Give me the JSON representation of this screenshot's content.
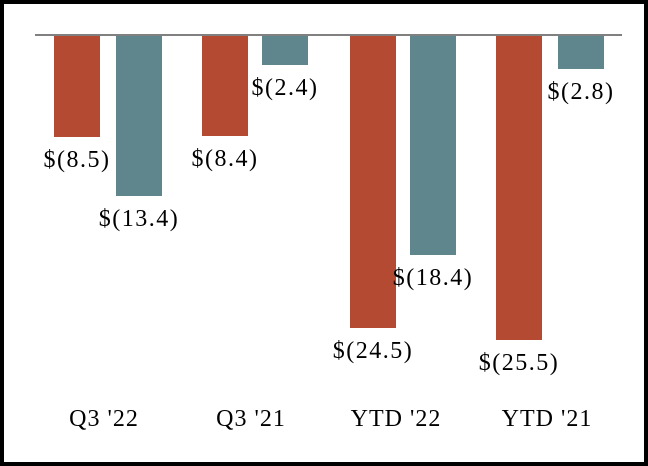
{
  "chart_data": {
    "type": "bar",
    "title": "",
    "xlabel": "",
    "ylabel": "",
    "unit": "USD (negative values shown in parentheses)",
    "categories": [
      "Q3 '22",
      "Q3 '21",
      "YTD '22",
      "YTD '21"
    ],
    "series": [
      {
        "name": "series-red",
        "color": "#b34a31",
        "values": [
          -8.5,
          -8.4,
          -24.5,
          -25.5
        ],
        "data_labels": [
          "$(8.5)",
          "$(8.4)",
          "$(24.5)",
          "$(25.5)"
        ]
      },
      {
        "name": "series-teal",
        "color": "#5f858d",
        "values": [
          -13.4,
          -2.4,
          -18.4,
          -2.8
        ],
        "data_labels": [
          "$(13.4)",
          "$(2.4)",
          "$(18.4)",
          "$(2.8)"
        ]
      }
    ],
    "ylim": [
      -26,
      0
    ],
    "baseline_value": 0,
    "grid": false,
    "legend": "none",
    "colors": {
      "baseline": "#808080",
      "frame_border": "#000000",
      "background": "#ffffff",
      "label_text": "#000000"
    }
  }
}
